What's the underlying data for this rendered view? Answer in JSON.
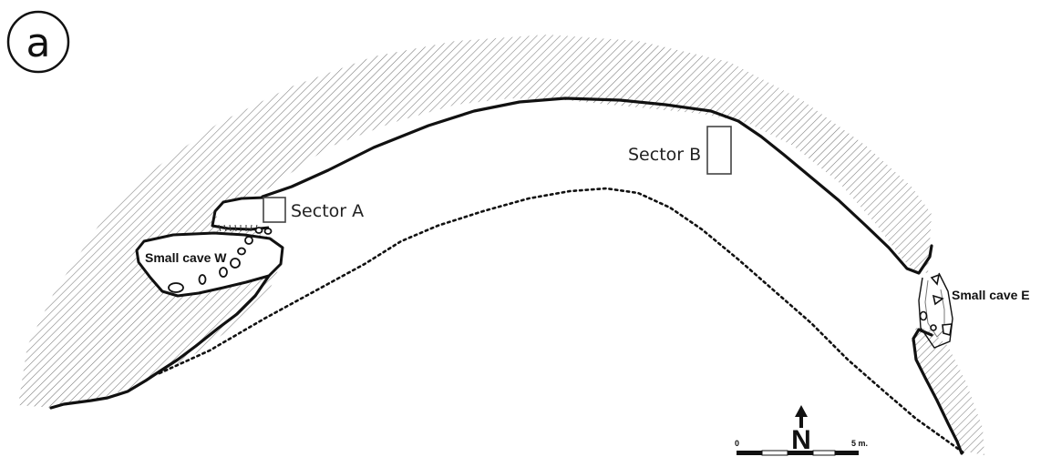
{
  "panel_label": "a",
  "sectors": {
    "a": "Sector A",
    "b": "Sector B"
  },
  "caves": {
    "west": "Small cave W",
    "east": "Small cave E"
  },
  "north_arrow": "N",
  "scale_bar": {
    "start_label": "0",
    "end_label": "5 m."
  }
}
